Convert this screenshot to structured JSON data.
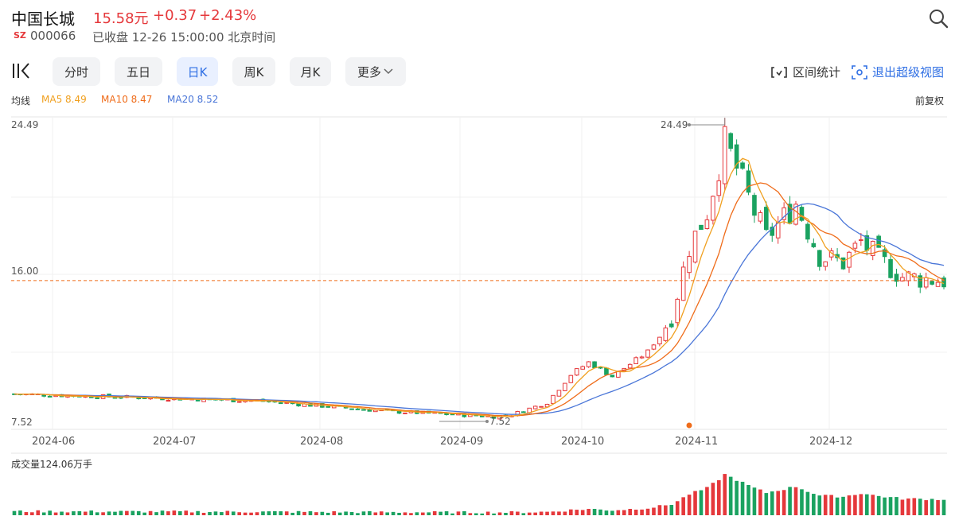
{
  "header": {
    "name": "中国长城",
    "price": "15.58元",
    "change": "+0.37",
    "change_pct": "+2.43%",
    "market": "SZ",
    "code": "000066",
    "status": "已收盘 12-26 15:00:00 北京时间"
  },
  "icons": {
    "search": "search-icon",
    "kline": "kline-icon"
  },
  "tabs": [
    {
      "label": "分时",
      "active": false
    },
    {
      "label": "五日",
      "active": false
    },
    {
      "label": "日K",
      "active": true
    },
    {
      "label": "周K",
      "active": false
    },
    {
      "label": "月K",
      "active": false
    },
    {
      "label": "更多",
      "active": false
    }
  ],
  "toolbar": {
    "stat_label": "区间统计",
    "exit_label": "退出超级视图"
  },
  "ma_legend": {
    "title": "均线",
    "ma5": "MA5 8.49",
    "ma10": "MA10 8.47",
    "ma20": "MA20 8.52",
    "adjust": "前复权"
  },
  "colors": {
    "up": "#e5383b",
    "down": "#1aa260",
    "ma5": "#f0a020",
    "ma10": "#ef6c1a",
    "ma20": "#4a76d8",
    "accent": "#2f6fe4"
  },
  "chart_data": {
    "type": "candlestick",
    "y_labels": [
      "24.49",
      "16.00",
      "7.52"
    ],
    "ylim": [
      7.52,
      24.49
    ],
    "reference_price": 15.58,
    "x_ticks": [
      "2024-06",
      "2024-07",
      "2024-08",
      "2024-09",
      "2024-10",
      "2024-11",
      "2024-12"
    ],
    "annotations": {
      "high": "24.49",
      "low": "7.52"
    },
    "volume_title": "成交量124.06万手",
    "segments": [
      {
        "days": 20,
        "start": 9.1,
        "end": 8.9
      },
      {
        "days": 22,
        "start": 8.9,
        "end": 8.7
      },
      {
        "days": 22,
        "start": 8.7,
        "end": 8.1
      },
      {
        "days": 18,
        "start": 8.1,
        "end": 7.8
      },
      {
        "days": 3,
        "start": 7.8,
        "end": 7.9
      },
      {
        "days": 6,
        "start": 7.9,
        "end": 8.6
      },
      {
        "days": 4,
        "start": 8.6,
        "end": 10.2
      },
      {
        "days": 3,
        "start": 10.2,
        "end": 10.9
      },
      {
        "days": 4,
        "start": 10.9,
        "end": 10.1
      },
      {
        "days": 6,
        "start": 10.1,
        "end": 11.5
      },
      {
        "days": 4,
        "start": 11.5,
        "end": 13.5
      },
      {
        "days": 3,
        "start": 13.5,
        "end": 17.5
      },
      {
        "days": 3,
        "start": 17.5,
        "end": 19.5
      },
      {
        "days": 3,
        "start": 19.5,
        "end": 23.5
      },
      {
        "days": 2,
        "start": 23.5,
        "end": 22.0
      },
      {
        "days": 3,
        "start": 22.0,
        "end": 19.5
      },
      {
        "days": 2,
        "start": 19.5,
        "end": 18.0
      },
      {
        "days": 5,
        "start": 18.0,
        "end": 20.0
      },
      {
        "days": 4,
        "start": 20.0,
        "end": 17.0
      },
      {
        "days": 4,
        "start": 17.0,
        "end": 16.6
      },
      {
        "days": 3,
        "start": 16.6,
        "end": 17.8
      },
      {
        "days": 3,
        "start": 17.8,
        "end": 16.8
      },
      {
        "days": 4,
        "start": 16.8,
        "end": 15.8
      },
      {
        "days": 7,
        "start": 15.8,
        "end": 15.58
      }
    ],
    "ma20_start": 9.3,
    "vol_max_days": []
  }
}
